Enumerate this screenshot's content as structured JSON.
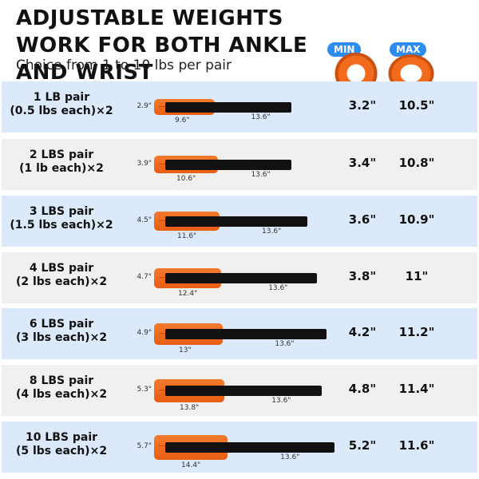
{
  "header": {
    "title": "ADJUSTABLE WEIGHTS WORK FOR BOTH ANKLE AND WRIST",
    "subtitle": "Choice from 1 to 10 lbs per pair",
    "min_label": "MIN",
    "max_label": "MAX"
  },
  "rows": [
    {
      "label_1": "1 LB pair",
      "label_2": "(0.5 lbs each)×2",
      "height": "2.9\"",
      "width": "9.6\"",
      "length": "13.6\"",
      "min": "3.2\"",
      "max": "10.5\""
    },
    {
      "label_1": "2 LBS pair",
      "label_2": "(1 lb each)×2",
      "height": "3.9\"",
      "width": "10.6\"",
      "length": "13.6\"",
      "min": "3.4\"",
      "max": "10.8\""
    },
    {
      "label_1": "3 LBS pair",
      "label_2": "(1.5 lbs each)×2",
      "height": "4.5\"",
      "width": "11.6\"",
      "length": "13.6\"",
      "min": "3.6\"",
      "max": "10.9\""
    },
    {
      "label_1": "4 LBS pair",
      "label_2": "(2 lbs each)×2",
      "height": "4.7\"",
      "width": "12.4\"",
      "length": "13.6\"",
      "min": "3.8\"",
      "max": "11\""
    },
    {
      "label_1": "6 LBS pair",
      "label_2": "(3 lbs each)×2",
      "height": "4.9\"",
      "width": "13\"",
      "length": "13.6\"",
      "min": "4.2\"",
      "max": "11.2\""
    },
    {
      "label_1": "8 LBS pair",
      "label_2": "(4 lbs each)×2",
      "height": "5.3\"",
      "width": "13.8\"",
      "length": "13.6\"",
      "min": "4.8\"",
      "max": "11.4\""
    },
    {
      "label_1": "10 LBS pair",
      "label_2": "(5 lbs each)×2",
      "height": "5.7\"",
      "width": "14.4\"",
      "length": "13.6\"",
      "min": "5.2\"",
      "max": "11.6\""
    }
  ],
  "colors": {
    "accent": "#f26a1b",
    "badge": "#2d8cf0",
    "row_blue": "#dbe9fb",
    "row_gray": "#f1f0ef"
  }
}
